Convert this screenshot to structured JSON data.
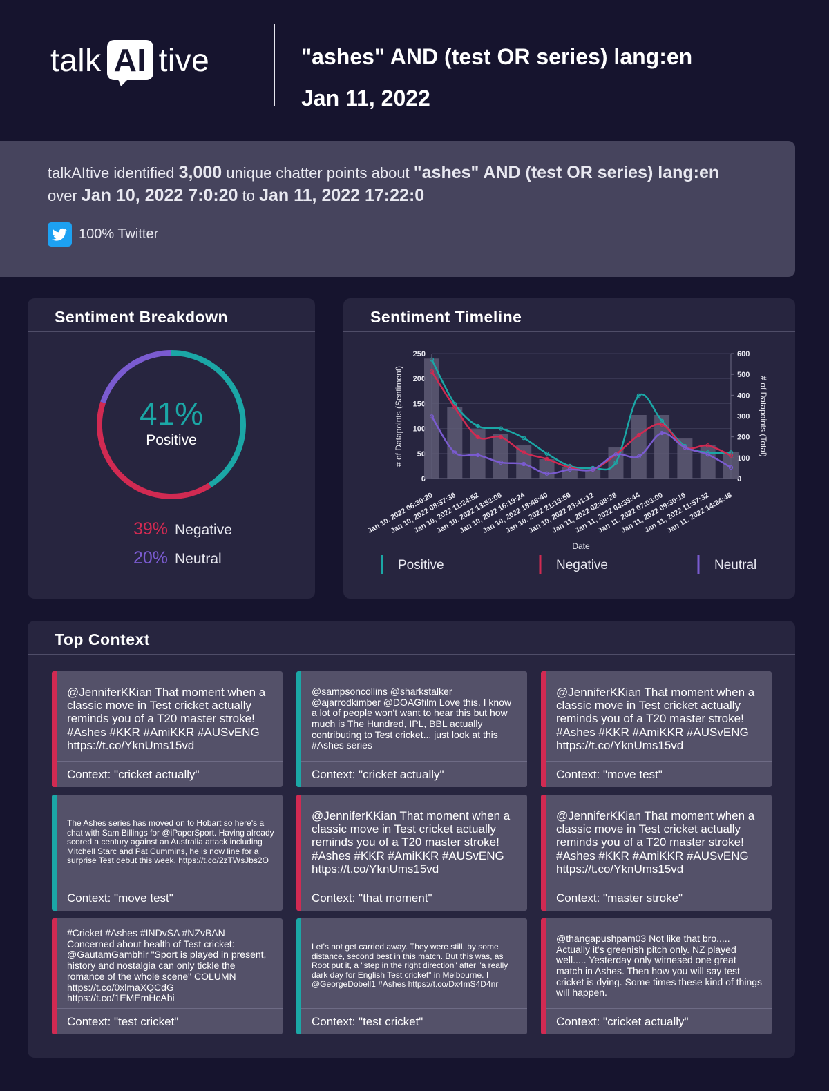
{
  "header": {
    "logo": [
      "talk",
      "AI",
      "tive"
    ],
    "query": "\"ashes\" AND (test OR series) lang:en",
    "date": "Jan 11, 2022"
  },
  "summary": {
    "parts": [
      "talkAItive identified",
      "3,000",
      "unique chatter points about",
      "\"ashes\" AND (test OR series) lang:en",
      "over",
      "Jan 10, 2022 7:0:20",
      "to",
      "Jan 11, 2022 17:22:0"
    ],
    "source": "100% Twitter"
  },
  "chart_data": [
    {
      "type": "donut",
      "title": "Sentiment Breakdown",
      "categories": [
        "Positive",
        "Negative",
        "Neutral"
      ],
      "values": [
        41,
        39,
        20
      ],
      "value_labels": [
        "41%",
        "39%",
        "20%"
      ],
      "colors": [
        "#1ba7a6",
        "#d12a52",
        "#7a5bd0"
      ]
    },
    {
      "type": "line",
      "title": "Sentiment Timeline",
      "x_label": "Date",
      "y_label": "# of Datapoints (Sentiment)",
      "y2_label": "# of Datapoints (Total)",
      "categories": [
        "Jan 10, 2022 06:30:20",
        "Jan 10, 2022 08:57:36",
        "Jan 10, 2022 11:24:52",
        "Jan 10, 2022 13:52:08",
        "Jan 10, 2022 16:19:24",
        "Jan 10, 2022 18:46:40",
        "Jan 10, 2022 21:13:56",
        "Jan 10, 2022 23:41:12",
        "Jan 11, 2022 02:08:28",
        "Jan 11, 2022 04:35:44",
        "Jan 11, 2022 07:03:00",
        "Jan 11, 2022 09:30:16",
        "Jan 11, 2022 11:57:32",
        "Jan 11, 2022 14:24:48"
      ],
      "ylim": [
        0,
        250
      ],
      "yticks": [
        0,
        50,
        100,
        150,
        200,
        250
      ],
      "y2lim": [
        0,
        600
      ],
      "y2ticks": [
        0,
        100,
        200,
        300,
        400,
        500,
        600
      ],
      "grid": true,
      "series": [
        {
          "type": "bar",
          "axis": "y2",
          "color": "#5e5b74",
          "values": [
            576,
            344,
            235,
            215,
            159,
            93,
            53,
            43,
            149,
            305,
            305,
            192,
            159,
            126
          ]
        },
        {
          "name": "Positive",
          "color": "#1ba7a6",
          "values": [
            238,
            149,
            105,
            100,
            81,
            50,
            25,
            21,
            32,
            166,
            115,
            65,
            52,
            52
          ]
        },
        {
          "name": "Negative",
          "color": "#d12a52",
          "values": [
            214,
            142,
            83,
            83,
            52,
            39,
            22,
            18,
            48,
            87,
            108,
            62,
            66,
            46
          ]
        },
        {
          "name": "Neutral",
          "color": "#7a5bd0",
          "values": [
            124,
            52,
            47,
            32,
            29,
            10,
            18,
            18,
            48,
            44,
            91,
            62,
            48,
            22
          ]
        }
      ]
    }
  ],
  "top_context": {
    "title": "Top Context",
    "cards": [
      {
        "text": "@JenniferKKian That moment when a classic move in Test cricket actually reminds you of a T20 master stroke! #Ashes #KKR #AmiKKR #AUSvENG https://t.co/YknUms15vd",
        "context": "Context: \"cricket actually\"",
        "color": "#d12a52"
      },
      {
        "text": "@sampsoncollins @sharkstalker @ajarrodkimber @DOAGfilm Love this. I know a lot of people won't want to hear this but how much is The Hundred, IPL, BBL actually contributing to Test cricket... just look at this #Ashes series",
        "context": "Context: \"cricket actually\"",
        "color": "#1ba7a6"
      },
      {
        "text": "@JenniferKKian That moment when a classic move in Test cricket actually reminds you of a T20 master stroke! #Ashes #KKR #AmiKKR #AUSvENG https://t.co/YknUms15vd",
        "context": "Context: \"move test\"",
        "color": "#d12a52"
      },
      {
        "text": "The Ashes series has moved on to Hobart so here's a chat with Sam Billings for @iPaperSport. Having already scored a century against an Australia attack including Mitchell Starc and Pat Cummins, he is now line for a surprise Test debut this week. https://t.co/2zTWsJbs2O",
        "context": "Context: \"move test\"",
        "color": "#1ba7a6"
      },
      {
        "text": "@JenniferKKian That moment when a classic move in Test cricket actually reminds you of a T20 master stroke! #Ashes #KKR #AmiKKR #AUSvENG https://t.co/YknUms15vd",
        "context": "Context: \"that moment\"",
        "color": "#d12a52"
      },
      {
        "text": "@JenniferKKian That moment when a classic move in Test cricket actually reminds you of a T20 master stroke! #Ashes #KKR #AmiKKR #AUSvENG https://t.co/YknUms15vd",
        "context": "Context: \"master stroke\"",
        "color": "#d12a52"
      },
      {
        "text": "#Cricket #Ashes #INDvSA #NZvBAN Concerned about health of Test cricket: @GautamGambhir \"Sport is played in present, history and nostalgia can only tickle the romance of the whole scene\" COLUMN https://t.co/0xlmaXQCdG https://t.co/1EMEmHcAbi",
        "context": "Context: \"test cricket\"",
        "color": "#d12a52"
      },
      {
        "text": "Let's not get carried away. They were still, by some distance, second best in this match. But this was, as Root put it, a \"step in the right direction\" after \"a really dark day for English Test cricket\" in Melbourne. I @GeorgeDobell1 #Ashes https://t.co/Dx4mS4D4nr",
        "context": "Context: \"test cricket\"",
        "color": "#1ba7a6"
      },
      {
        "text": "@thangapushpam03 Not like that bro..... Actually it's greenish pitch only. NZ played well..... Yesterday only witnesed one great match in Ashes. Then how you will say test cricket is dying. Some times these kind of things will happen.",
        "context": "Context: \"cricket actually\"",
        "color": "#d12a52"
      }
    ]
  }
}
